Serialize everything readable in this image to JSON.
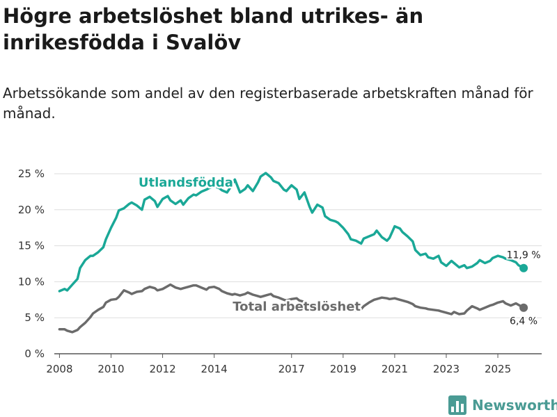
{
  "header": {
    "title": "Högre arbetslöshet bland utrikes- än inrikesfödda i Svalöv",
    "subtitle": "Arbetssökande som andel av den registerbaserade arbetskraften månad för månad."
  },
  "brand": {
    "name": "Newsworthy"
  },
  "colors": {
    "utlandsfodda": "#1aa897",
    "total": "#6b6b6b",
    "grid": "#dddddd",
    "brand": "#4a9b94"
  },
  "chart_data": {
    "type": "line",
    "title": "Högre arbetslöshet bland utrikes- än inrikesfödda i Svalöv",
    "subtitle": "Arbetssökande som andel av den registerbaserade arbetskraften månad för månad.",
    "xlabel": "",
    "ylabel": "",
    "xlim": [
      2007.8,
      2026.7
    ],
    "ylim": [
      0,
      25
    ],
    "grid": true,
    "legend": "inline",
    "x_ticks": [
      {
        "value": 2008,
        "label": "2008"
      },
      {
        "value": 2010,
        "label": "2010"
      },
      {
        "value": 2012,
        "label": "2012"
      },
      {
        "value": 2014,
        "label": "2014"
      },
      {
        "value": 2017,
        "label": "2017"
      },
      {
        "value": 2019,
        "label": "2019"
      },
      {
        "value": 2021,
        "label": "2021"
      },
      {
        "value": 2023,
        "label": "2023"
      },
      {
        "value": 2025,
        "label": "2025"
      }
    ],
    "y_ticks": [
      {
        "value": 0,
        "label": "0 %"
      },
      {
        "value": 5,
        "label": "5 %"
      },
      {
        "value": 10,
        "label": "10 %"
      },
      {
        "value": 15,
        "label": "15 %"
      },
      {
        "value": 20,
        "label": "20 %"
      },
      {
        "value": 25,
        "label": "25 %"
      }
    ],
    "series": [
      {
        "name": "Utlandsfödda",
        "label_position": [
          2012.9,
          23.2
        ],
        "end_label": "11,9 %",
        "points": [
          [
            2008.0,
            8.7
          ],
          [
            2008.2,
            9.0
          ],
          [
            2008.3,
            8.8
          ],
          [
            2008.5,
            9.6
          ],
          [
            2008.7,
            10.4
          ],
          [
            2008.8,
            11.9
          ],
          [
            2009.0,
            13.0
          ],
          [
            2009.2,
            13.6
          ],
          [
            2009.3,
            13.6
          ],
          [
            2009.5,
            14.1
          ],
          [
            2009.7,
            14.8
          ],
          [
            2009.8,
            15.9
          ],
          [
            2010.0,
            17.5
          ],
          [
            2010.2,
            18.9
          ],
          [
            2010.3,
            19.9
          ],
          [
            2010.5,
            20.2
          ],
          [
            2010.7,
            20.8
          ],
          [
            2010.8,
            21.0
          ],
          [
            2011.0,
            20.6
          ],
          [
            2011.2,
            20.0
          ],
          [
            2011.3,
            21.4
          ],
          [
            2011.5,
            21.8
          ],
          [
            2011.7,
            21.2
          ],
          [
            2011.8,
            20.4
          ],
          [
            2012.0,
            21.5
          ],
          [
            2012.2,
            21.9
          ],
          [
            2012.3,
            21.3
          ],
          [
            2012.5,
            20.8
          ],
          [
            2012.7,
            21.3
          ],
          [
            2012.8,
            20.7
          ],
          [
            2013.0,
            21.6
          ],
          [
            2013.2,
            22.1
          ],
          [
            2013.3,
            22.0
          ],
          [
            2013.5,
            22.5
          ],
          [
            2013.7,
            22.8
          ],
          [
            2013.8,
            23.0
          ],
          [
            2014.0,
            23.3
          ],
          [
            2014.2,
            23.0
          ],
          [
            2014.3,
            22.7
          ],
          [
            2014.5,
            22.4
          ],
          [
            2014.7,
            23.5
          ],
          [
            2014.8,
            24.2
          ],
          [
            2015.0,
            22.4
          ],
          [
            2015.2,
            22.9
          ],
          [
            2015.3,
            23.4
          ],
          [
            2015.5,
            22.6
          ],
          [
            2015.7,
            23.8
          ],
          [
            2015.8,
            24.6
          ],
          [
            2016.0,
            25.1
          ],
          [
            2016.2,
            24.5
          ],
          [
            2016.3,
            24.0
          ],
          [
            2016.5,
            23.7
          ],
          [
            2016.7,
            22.8
          ],
          [
            2016.8,
            22.6
          ],
          [
            2017.0,
            23.4
          ],
          [
            2017.2,
            22.8
          ],
          [
            2017.3,
            21.5
          ],
          [
            2017.5,
            22.4
          ],
          [
            2017.7,
            20.4
          ],
          [
            2017.8,
            19.6
          ],
          [
            2018.0,
            20.7
          ],
          [
            2018.2,
            20.3
          ],
          [
            2018.3,
            19.1
          ],
          [
            2018.5,
            18.6
          ],
          [
            2018.7,
            18.4
          ],
          [
            2018.8,
            18.2
          ],
          [
            2019.0,
            17.5
          ],
          [
            2019.2,
            16.6
          ],
          [
            2019.3,
            15.9
          ],
          [
            2019.5,
            15.7
          ],
          [
            2019.7,
            15.3
          ],
          [
            2019.8,
            16.0
          ],
          [
            2020.0,
            16.3
          ],
          [
            2020.2,
            16.6
          ],
          [
            2020.3,
            17.1
          ],
          [
            2020.5,
            16.2
          ],
          [
            2020.7,
            15.7
          ],
          [
            2020.8,
            16.1
          ],
          [
            2021.0,
            17.7
          ],
          [
            2021.2,
            17.4
          ],
          [
            2021.3,
            16.9
          ],
          [
            2021.5,
            16.3
          ],
          [
            2021.7,
            15.6
          ],
          [
            2021.8,
            14.4
          ],
          [
            2022.0,
            13.7
          ],
          [
            2022.2,
            13.9
          ],
          [
            2022.3,
            13.4
          ],
          [
            2022.5,
            13.2
          ],
          [
            2022.7,
            13.6
          ],
          [
            2022.8,
            12.7
          ],
          [
            2023.0,
            12.2
          ],
          [
            2023.2,
            12.9
          ],
          [
            2023.3,
            12.6
          ],
          [
            2023.5,
            12.0
          ],
          [
            2023.7,
            12.3
          ],
          [
            2023.8,
            11.9
          ],
          [
            2024.0,
            12.1
          ],
          [
            2024.2,
            12.6
          ],
          [
            2024.3,
            13.0
          ],
          [
            2024.5,
            12.6
          ],
          [
            2024.7,
            12.9
          ],
          [
            2024.8,
            13.3
          ],
          [
            2025.0,
            13.6
          ],
          [
            2025.2,
            13.4
          ],
          [
            2025.3,
            13.2
          ],
          [
            2025.5,
            13.0
          ],
          [
            2025.7,
            12.7
          ],
          [
            2025.8,
            12.3
          ],
          [
            2026.0,
            11.9
          ]
        ]
      },
      {
        "name": "Total arbetslöshet",
        "label_position": [
          2017.2,
          6.0
        ],
        "end_label": "6,4 %",
        "points": [
          [
            2008.0,
            3.4
          ],
          [
            2008.2,
            3.4
          ],
          [
            2008.3,
            3.2
          ],
          [
            2008.5,
            3.0
          ],
          [
            2008.7,
            3.3
          ],
          [
            2008.8,
            3.7
          ],
          [
            2009.0,
            4.3
          ],
          [
            2009.2,
            5.1
          ],
          [
            2009.3,
            5.6
          ],
          [
            2009.5,
            6.1
          ],
          [
            2009.7,
            6.5
          ],
          [
            2009.8,
            7.1
          ],
          [
            2010.0,
            7.5
          ],
          [
            2010.2,
            7.6
          ],
          [
            2010.3,
            7.9
          ],
          [
            2010.5,
            8.8
          ],
          [
            2010.7,
            8.5
          ],
          [
            2010.8,
            8.3
          ],
          [
            2011.0,
            8.6
          ],
          [
            2011.2,
            8.7
          ],
          [
            2011.3,
            9.0
          ],
          [
            2011.5,
            9.3
          ],
          [
            2011.7,
            9.1
          ],
          [
            2011.8,
            8.8
          ],
          [
            2012.0,
            9.0
          ],
          [
            2012.2,
            9.4
          ],
          [
            2012.3,
            9.6
          ],
          [
            2012.5,
            9.2
          ],
          [
            2012.7,
            9.0
          ],
          [
            2012.8,
            9.1
          ],
          [
            2013.0,
            9.3
          ],
          [
            2013.2,
            9.5
          ],
          [
            2013.3,
            9.5
          ],
          [
            2013.5,
            9.2
          ],
          [
            2013.7,
            8.9
          ],
          [
            2013.8,
            9.2
          ],
          [
            2014.0,
            9.3
          ],
          [
            2014.2,
            9.0
          ],
          [
            2014.3,
            8.7
          ],
          [
            2014.5,
            8.4
          ],
          [
            2014.7,
            8.2
          ],
          [
            2014.8,
            8.3
          ],
          [
            2015.0,
            8.1
          ],
          [
            2015.2,
            8.3
          ],
          [
            2015.3,
            8.5
          ],
          [
            2015.5,
            8.2
          ],
          [
            2015.7,
            8.0
          ],
          [
            2015.8,
            7.9
          ],
          [
            2016.0,
            8.1
          ],
          [
            2016.2,
            8.3
          ],
          [
            2016.3,
            8.0
          ],
          [
            2016.5,
            7.8
          ],
          [
            2016.7,
            7.5
          ],
          [
            2016.8,
            7.4
          ],
          [
            2017.0,
            7.6
          ],
          [
            2017.2,
            7.7
          ],
          [
            2017.3,
            7.4
          ],
          [
            2017.5,
            7.2
          ],
          [
            2017.7,
            7.0
          ],
          [
            2017.8,
            6.8
          ],
          [
            2018.0,
            6.9
          ],
          [
            2018.2,
            6.8
          ],
          [
            2018.3,
            6.6
          ],
          [
            2018.5,
            6.5
          ],
          [
            2018.7,
            6.4
          ],
          [
            2018.8,
            6.3
          ],
          [
            2019.0,
            6.4
          ],
          [
            2019.2,
            6.3
          ],
          [
            2019.3,
            6.1
          ],
          [
            2019.5,
            6.0
          ],
          [
            2019.7,
            6.2
          ],
          [
            2019.8,
            6.6
          ],
          [
            2020.0,
            7.1
          ],
          [
            2020.2,
            7.5
          ],
          [
            2020.3,
            7.6
          ],
          [
            2020.5,
            7.8
          ],
          [
            2020.7,
            7.7
          ],
          [
            2020.8,
            7.6
          ],
          [
            2021.0,
            7.7
          ],
          [
            2021.2,
            7.5
          ],
          [
            2021.3,
            7.4
          ],
          [
            2021.5,
            7.2
          ],
          [
            2021.7,
            6.9
          ],
          [
            2021.8,
            6.6
          ],
          [
            2022.0,
            6.4
          ],
          [
            2022.2,
            6.3
          ],
          [
            2022.3,
            6.2
          ],
          [
            2022.5,
            6.1
          ],
          [
            2022.7,
            6.0
          ],
          [
            2022.8,
            5.9
          ],
          [
            2023.0,
            5.7
          ],
          [
            2023.2,
            5.5
          ],
          [
            2023.3,
            5.8
          ],
          [
            2023.5,
            5.5
          ],
          [
            2023.7,
            5.6
          ],
          [
            2023.8,
            6.0
          ],
          [
            2024.0,
            6.6
          ],
          [
            2024.2,
            6.3
          ],
          [
            2024.3,
            6.1
          ],
          [
            2024.5,
            6.4
          ],
          [
            2024.7,
            6.7
          ],
          [
            2024.8,
            6.8
          ],
          [
            2025.0,
            7.1
          ],
          [
            2025.2,
            7.3
          ],
          [
            2025.3,
            7.0
          ],
          [
            2025.5,
            6.7
          ],
          [
            2025.7,
            7.0
          ],
          [
            2025.8,
            6.8
          ],
          [
            2026.0,
            6.4
          ]
        ]
      }
    ]
  }
}
